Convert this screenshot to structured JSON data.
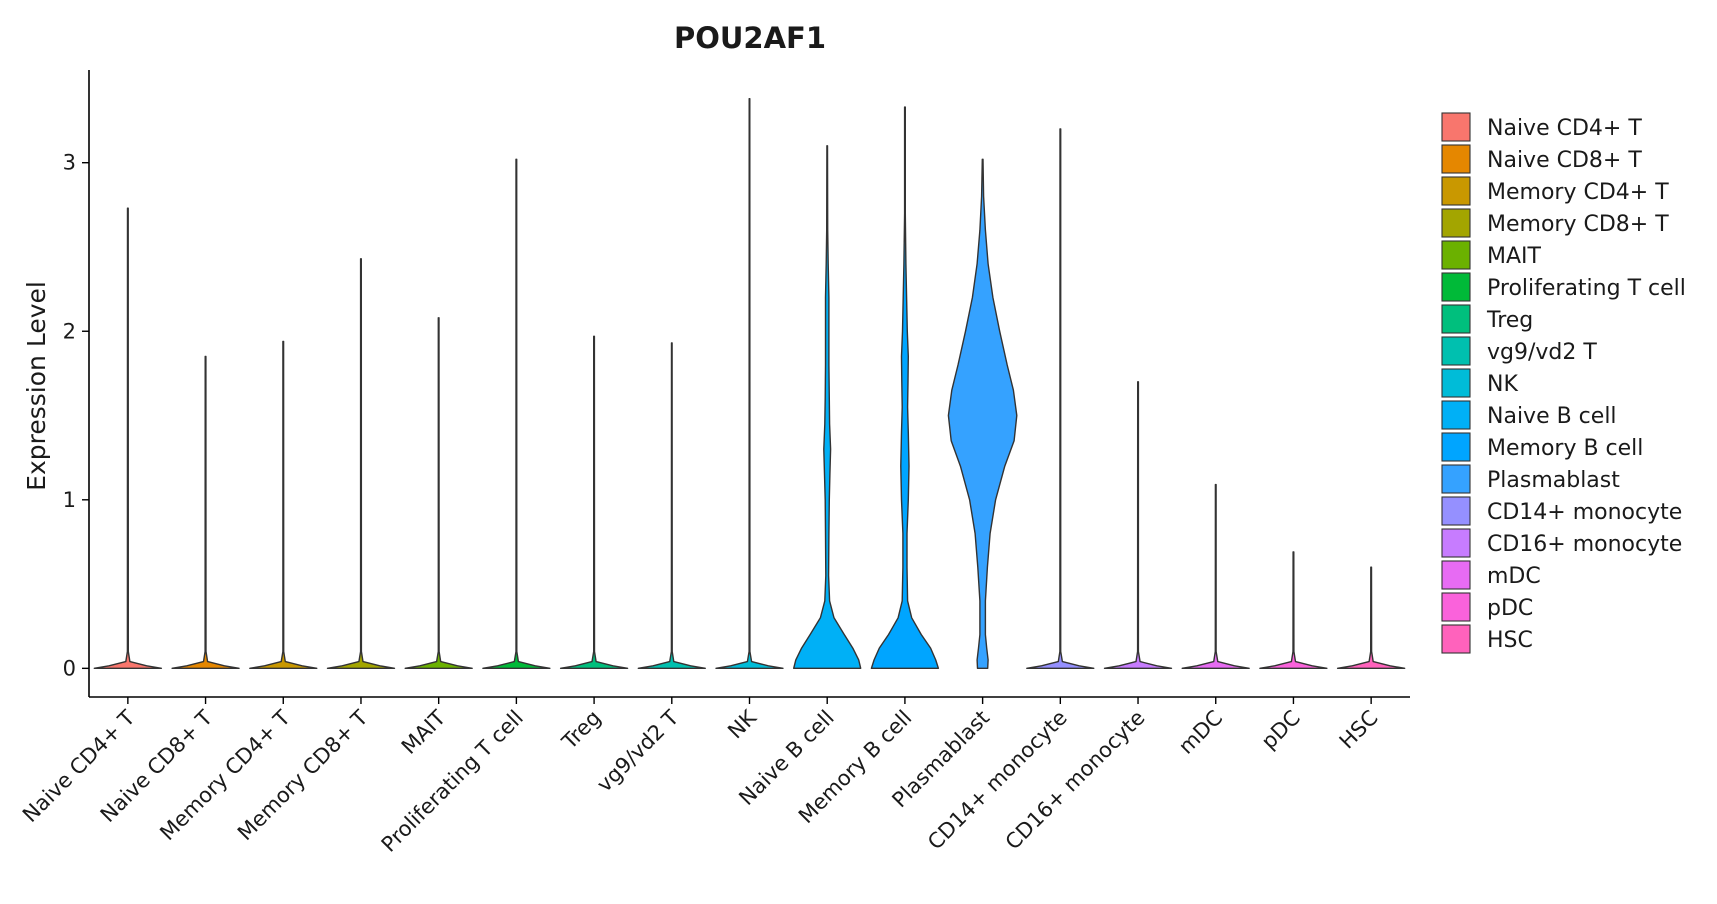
{
  "chart_data": {
    "type": "violin",
    "title": "POU2AF1",
    "xlabel": "",
    "ylabel": "Expression Level",
    "ylim": [
      -0.17,
      3.55
    ],
    "yticks": [
      0,
      1,
      2,
      3
    ],
    "grid": false,
    "legend_position": "right",
    "categories": [
      "Naive CD4+ T",
      "Naive CD8+ T",
      "Memory CD4+ T",
      "Memory CD8+ T",
      "MAIT",
      "Proliferating T cell",
      "Treg",
      "vg9/vd2 T",
      "NK",
      "Naive B cell",
      "Memory B cell",
      "Plasmablast",
      "CD14+ monocyte",
      "CD16+ monocyte",
      "mDC",
      "pDC",
      "HSC"
    ],
    "colors": [
      "#F8766D",
      "#E58700",
      "#C99800",
      "#A3A500",
      "#6BB100",
      "#00BA38",
      "#00BF7D",
      "#00C0AF",
      "#00BCD8",
      "#00B0F6",
      "#00A5FF",
      "#35A2FF",
      "#9590FF",
      "#C77CFF",
      "#E76BF3",
      "#FA62DB",
      "#FF62BC"
    ],
    "max_values": [
      2.73,
      1.85,
      1.94,
      2.43,
      2.08,
      3.02,
      1.97,
      1.93,
      3.38,
      3.1,
      3.33,
      3.02,
      3.2,
      1.7,
      1.09,
      0.69,
      0.6
    ],
    "density_profiles": {
      "Naive B cell": [
        [
          0,
          0.98
        ],
        [
          0.05,
          0.92
        ],
        [
          0.12,
          0.75
        ],
        [
          0.2,
          0.5
        ],
        [
          0.3,
          0.2
        ],
        [
          0.4,
          0.07
        ],
        [
          0.55,
          0.04
        ],
        [
          0.8,
          0.05
        ],
        [
          1.0,
          0.06
        ],
        [
          1.15,
          0.08
        ],
        [
          1.3,
          0.1
        ],
        [
          1.45,
          0.07
        ],
        [
          1.6,
          0.06
        ],
        [
          1.8,
          0.05
        ],
        [
          2.0,
          0.05
        ],
        [
          2.2,
          0.05
        ],
        [
          2.4,
          0.03
        ],
        [
          2.6,
          0.015
        ],
        [
          3.1,
          0.01
        ]
      ],
      "Memory B cell": [
        [
          0,
          0.98
        ],
        [
          0.05,
          0.9
        ],
        [
          0.12,
          0.75
        ],
        [
          0.2,
          0.48
        ],
        [
          0.3,
          0.2
        ],
        [
          0.4,
          0.08
        ],
        [
          0.6,
          0.06
        ],
        [
          0.8,
          0.06
        ],
        [
          1.0,
          0.1
        ],
        [
          1.2,
          0.12
        ],
        [
          1.4,
          0.1
        ],
        [
          1.55,
          0.08
        ],
        [
          1.7,
          0.09
        ],
        [
          1.85,
          0.1
        ],
        [
          2.0,
          0.07
        ],
        [
          2.2,
          0.05
        ],
        [
          2.4,
          0.03
        ],
        [
          2.7,
          0.01
        ],
        [
          3.33,
          0.01
        ]
      ],
      "Plasmablast": [
        [
          0,
          0.15
        ],
        [
          0.05,
          0.16
        ],
        [
          0.12,
          0.12
        ],
        [
          0.2,
          0.08
        ],
        [
          0.4,
          0.08
        ],
        [
          0.6,
          0.14
        ],
        [
          0.8,
          0.22
        ],
        [
          1.0,
          0.38
        ],
        [
          1.2,
          0.65
        ],
        [
          1.35,
          0.92
        ],
        [
          1.5,
          1.0
        ],
        [
          1.65,
          0.9
        ],
        [
          1.8,
          0.72
        ],
        [
          2.0,
          0.5
        ],
        [
          2.2,
          0.3
        ],
        [
          2.4,
          0.16
        ],
        [
          2.6,
          0.08
        ],
        [
          2.8,
          0.03
        ],
        [
          3.02,
          0.01
        ]
      ]
    },
    "baseline_width": 0.98
  }
}
